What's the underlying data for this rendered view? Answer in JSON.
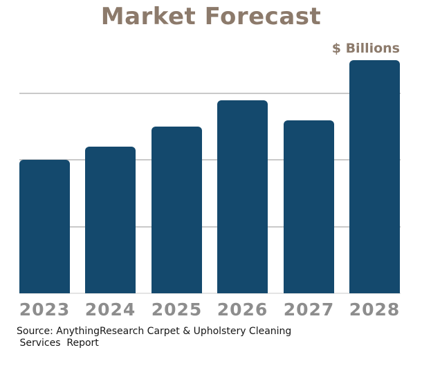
{
  "title": "Market Forecast",
  "units_label": "$ Billions",
  "source": {
    "line1": "Source: AnythingResearch Carpet & Upholstery Cleaning",
    "line2": " Services  Report"
  },
  "colors": {
    "bar": "#14496d",
    "title_text": "#8c7a6b",
    "axis_tick_text": "#8d8d8d",
    "gridline": "#c9c9c9",
    "baseline": "#e4e4e4",
    "source_text": "#151515",
    "background": "#ffffff"
  },
  "chart_data": {
    "type": "bar",
    "title": "Market Forecast",
    "ylabel": "$ Billions",
    "xlabel": "",
    "categories": [
      "2023",
      "2024",
      "2025",
      "2026",
      "2027",
      "2028"
    ],
    "values": [
      2.0,
      2.2,
      2.5,
      2.9,
      2.6,
      3.5
    ],
    "ylim": [
      0,
      3.5
    ],
    "gridline_values": [
      1,
      2,
      3
    ],
    "grid": true,
    "y_tick_labels_shown": false,
    "legend": "none",
    "bar_color": "#14496d"
  }
}
